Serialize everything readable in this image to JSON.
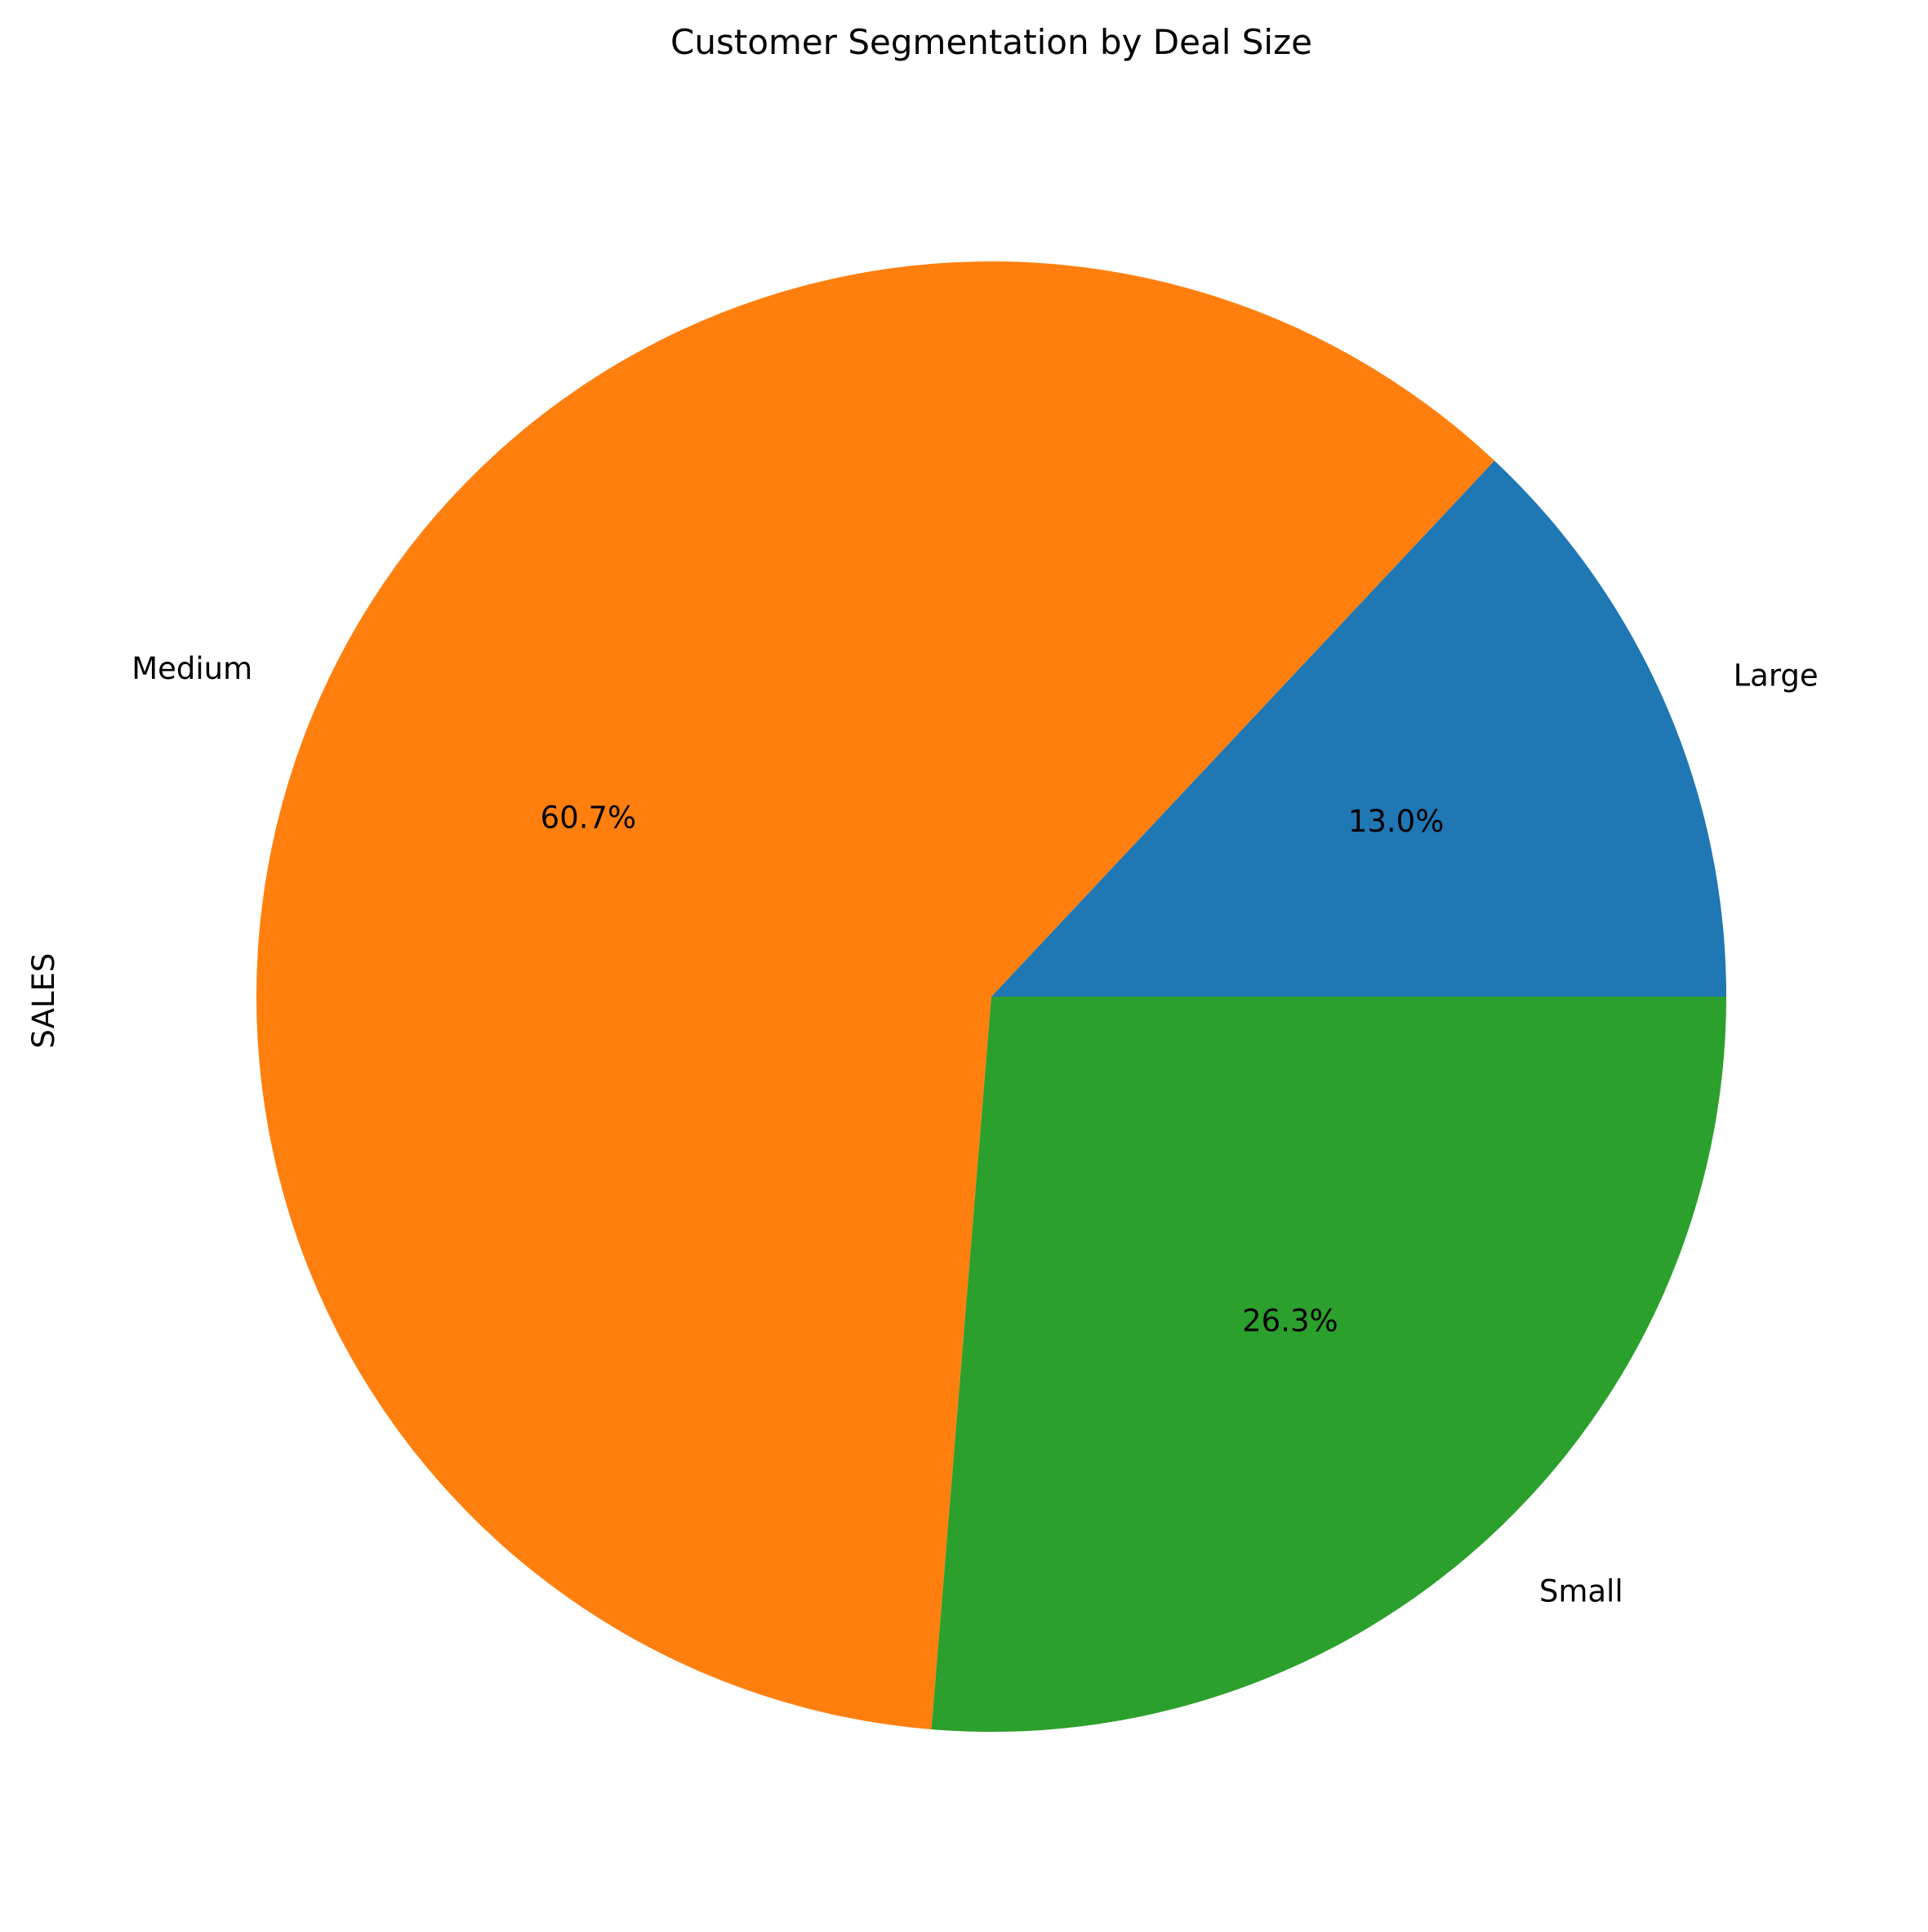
{
  "chart_data": {
    "type": "pie",
    "title": "Customer Segmentation by Deal Size",
    "ylabel": "SALES",
    "start_angle_deg": 0,
    "direction": "counterclockwise",
    "slices": [
      {
        "label": "Large",
        "percent": 13.0,
        "percent_label": "13.0%",
        "color": "#1f77b4"
      },
      {
        "label": "Medium",
        "percent": 60.7,
        "percent_label": "60.7%",
        "color": "#ff7f0e"
      },
      {
        "label": "Small",
        "percent": 26.3,
        "percent_label": "26.3%",
        "color": "#2ca02c"
      }
    ]
  }
}
